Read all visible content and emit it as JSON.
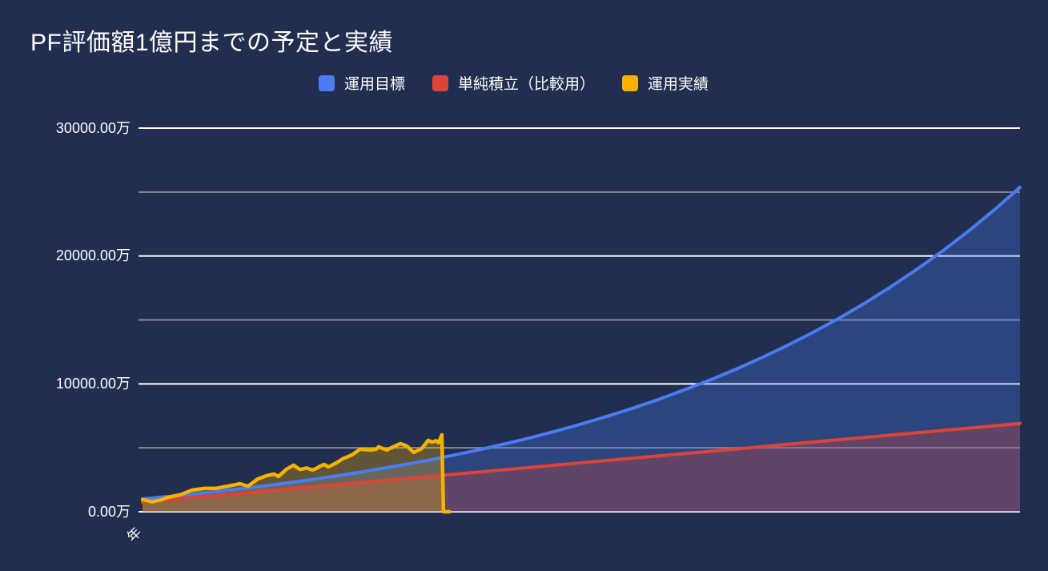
{
  "chart_data": {
    "type": "area",
    "title": "PF評価額1億円までの予定と実績",
    "unit": "万",
    "background_color": "#222e50",
    "legend_position": "top",
    "x_axis": {
      "visible_tick_label": "年",
      "span_years": 34,
      "tick_rotation_deg": -45
    },
    "y_axis": {
      "min": 0,
      "max": 30000,
      "tick_labels": [
        "30000.00万",
        "20000.00万",
        "10000.00万",
        "0.00万"
      ],
      "major_values": [
        30000,
        20000,
        10000,
        0
      ],
      "minor_values": [
        25000,
        15000,
        5000
      ],
      "grid_major_color": "#ffffff",
      "grid_minor_color": "#8b8b94"
    },
    "series": [
      {
        "name": "運用目標",
        "color": "#4a7bf0",
        "line_width": 4,
        "fill_opacity": 0.3,
        "values": [
          1000,
          1190,
          1390,
          1610,
          1840,
          2090,
          2360,
          2650,
          2950,
          3280,
          3630,
          4000,
          4400,
          4830,
          5290,
          5770,
          6300,
          6860,
          7460,
          8100,
          8790,
          9530,
          10310,
          11150,
          12050,
          13020,
          14050,
          15150,
          16330,
          17600,
          18950,
          20390,
          21940,
          23600,
          25370
        ]
      },
      {
        "name": "単純積立（比較用）",
        "color": "#dc4437",
        "line_width": 4,
        "fill_opacity": 0.3,
        "values": [
          750,
          931,
          1112,
          1293,
          1474,
          1654,
          1835,
          2016,
          2197,
          2378,
          2559,
          2740,
          2921,
          3101,
          3282,
          3463,
          3644,
          3825,
          4006,
          4187,
          4368,
          4549,
          4729,
          4910,
          5091,
          5272,
          5453,
          5634,
          5815,
          5996,
          6177,
          6357,
          6538,
          6719,
          6900
        ]
      },
      {
        "name": "運用実績",
        "color": "#f3b300",
        "line_width": 4.5,
        "fill_opacity": 0.3,
        "points": [
          [
            0,
            950
          ],
          [
            0.37,
            780
          ],
          [
            0.68,
            900
          ],
          [
            0.99,
            1130
          ],
          [
            1.46,
            1330
          ],
          [
            1.92,
            1690
          ],
          [
            2.39,
            1820
          ],
          [
            2.85,
            1830
          ],
          [
            3.32,
            2010
          ],
          [
            3.78,
            2190
          ],
          [
            4.09,
            2000
          ],
          [
            4.47,
            2570
          ],
          [
            4.81,
            2820
          ],
          [
            5.09,
            2950
          ],
          [
            5.27,
            2760
          ],
          [
            5.58,
            3330
          ],
          [
            5.86,
            3640
          ],
          [
            6.1,
            3300
          ],
          [
            6.35,
            3420
          ],
          [
            6.58,
            3260
          ],
          [
            6.73,
            3380
          ],
          [
            6.89,
            3570
          ],
          [
            7.04,
            3700
          ],
          [
            7.2,
            3500
          ],
          [
            7.51,
            3820
          ],
          [
            7.75,
            4130
          ],
          [
            8.12,
            4450
          ],
          [
            8.43,
            4890
          ],
          [
            8.84,
            4820
          ],
          [
            9.06,
            4900
          ],
          [
            9.15,
            5080
          ],
          [
            9.46,
            4830
          ],
          [
            9.99,
            5330
          ],
          [
            10.24,
            5140
          ],
          [
            10.51,
            4640
          ],
          [
            10.82,
            4950
          ],
          [
            11.07,
            5580
          ],
          [
            11.23,
            5450
          ],
          [
            11.38,
            5550
          ],
          [
            11.47,
            5390
          ],
          [
            11.6,
            6020
          ],
          [
            11.66,
            0
          ],
          [
            11.9,
            0
          ]
        ]
      }
    ]
  }
}
